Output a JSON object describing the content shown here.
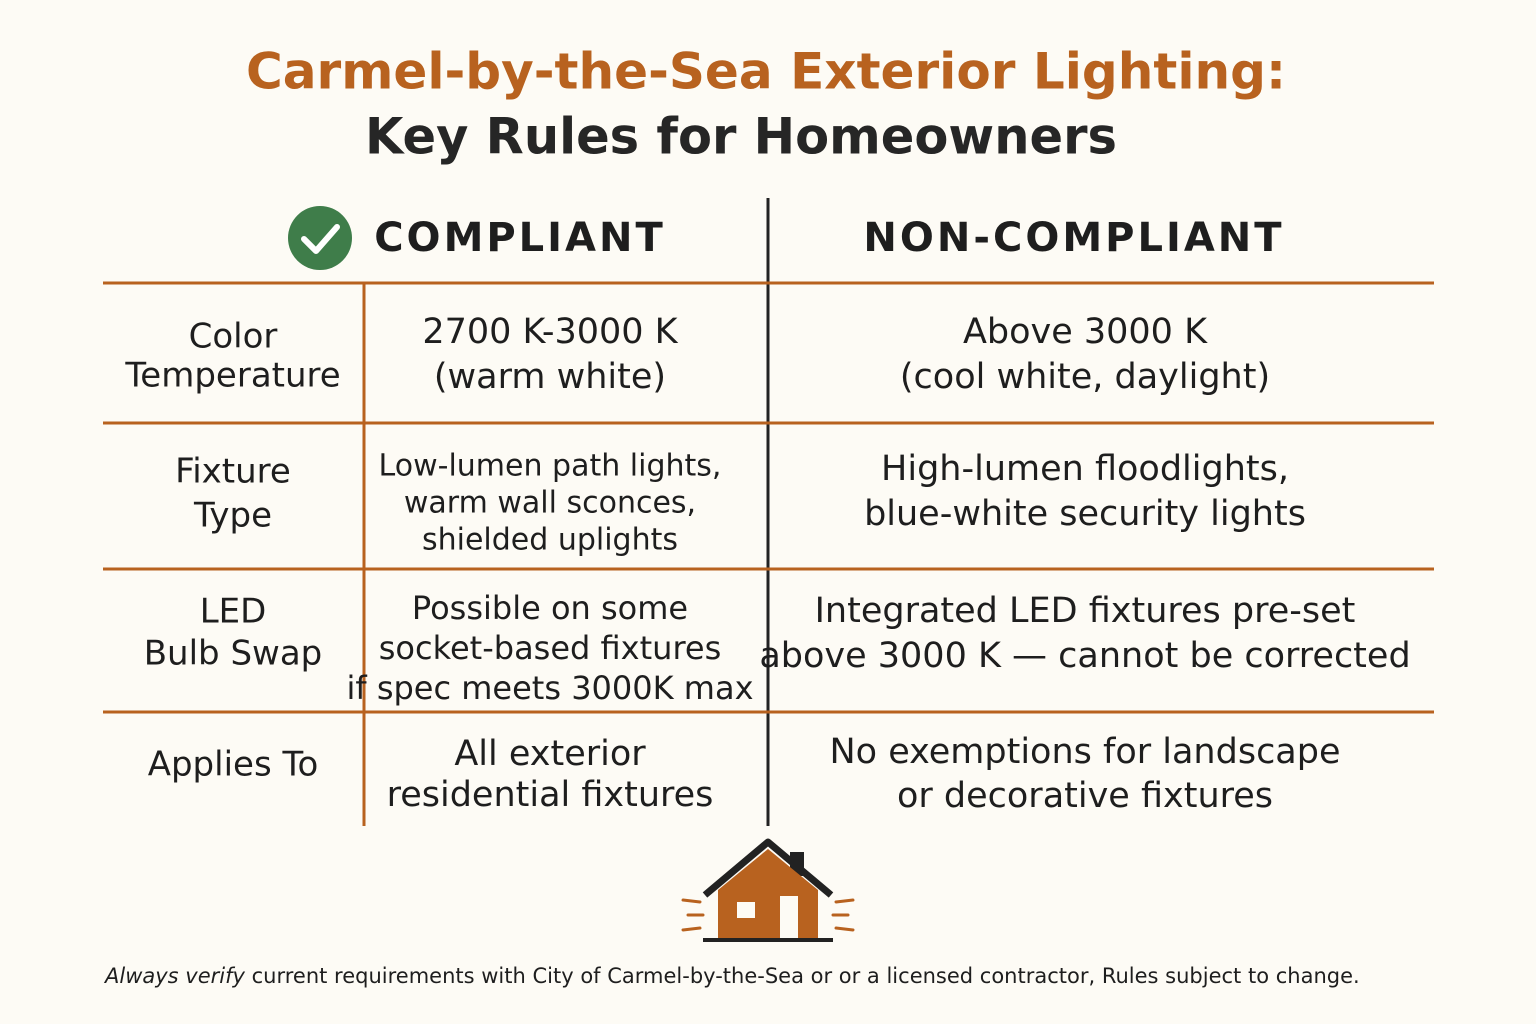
{
  "header": {
    "title": "Carmel-by-the-Sea Exterior Lighting:",
    "subtitle": "Key Rules for Homeowners"
  },
  "table": {
    "columns": [
      "COMPLIANT",
      "NON-COMPLIANT"
    ],
    "rows": [
      {
        "label": [
          "Color",
          "Temperature"
        ],
        "compliant": [
          "2700 K-3000 K",
          "(warm white)"
        ],
        "non_compliant": [
          "Above 3000 K",
          "(cool white, daylight)"
        ]
      },
      {
        "label": [
          "Fixture",
          "Type"
        ],
        "compliant": [
          "Low-lumen path lights,",
          "warm wall sconces,",
          "shielded uplights"
        ],
        "non_compliant": [
          "High-lumen floodlights,",
          "blue-white security lights"
        ]
      },
      {
        "label": [
          "LED",
          "Bulb Swap"
        ],
        "compliant": [
          "Possible on some",
          "socket-based fixtures",
          "if spec meets 3000K max"
        ],
        "non_compliant": [
          "Integrated LED fixtures pre-set",
          "above 3000 K — cannot be corrected"
        ]
      },
      {
        "label": [
          "Applies To"
        ],
        "compliant": [
          "All exterior",
          "residential fixtures"
        ],
        "non_compliant": [
          "No exemptions for landscape",
          "or decorative fixtures"
        ]
      }
    ]
  },
  "footer": {
    "emphasis": "Always verify",
    "text": "current requirements with City of Carmel-by-the-Sea or or a licensed contractor, Rules subject to change."
  }
}
